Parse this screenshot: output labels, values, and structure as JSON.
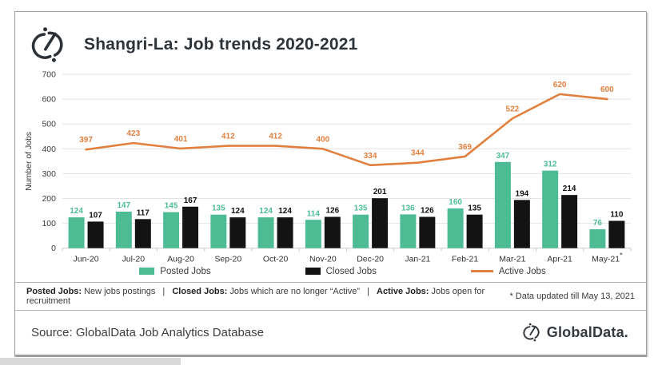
{
  "header": {
    "title": "Shangri-La: Job trends 2020-2021"
  },
  "chart_data": {
    "type": "bar",
    "subtype": "grouped-bar-with-line-overlay",
    "title": "Shangri-La: Job trends 2020-2021",
    "categories": [
      "Jun-20",
      "Jul-20",
      "Aug-20",
      "Sep-20",
      "Oct-20",
      "Nov-20",
      "Dec-20",
      "Jan-21",
      "Feb-21",
      "Mar-21",
      "Apr-21",
      "May-21"
    ],
    "last_category_suffix": "*",
    "series": [
      {
        "name": "Posted Jobs",
        "type": "bar",
        "color": "#4DBC94",
        "values": [
          124,
          147,
          145,
          135,
          124,
          114,
          135,
          136,
          160,
          347,
          312,
          76
        ]
      },
      {
        "name": "Closed Jobs",
        "type": "bar",
        "color": "#131313",
        "values": [
          107,
          117,
          167,
          124,
          124,
          126,
          201,
          126,
          135,
          194,
          214,
          110
        ]
      },
      {
        "name": "Active Jobs",
        "type": "line",
        "color": "#E1803E",
        "values": [
          397,
          423,
          401,
          412,
          412,
          400,
          334,
          344,
          369,
          522,
          620,
          600
        ]
      }
    ],
    "xlabel": "",
    "ylabel": "Number of Jobs",
    "ylim": [
      0,
      700
    ],
    "ytick_step": 100,
    "grid": true,
    "legend_position": "bottom",
    "data_labels": true
  },
  "legend": {
    "items": [
      {
        "label": "Posted Jobs",
        "swatch": "rect",
        "color": "#4DBC94"
      },
      {
        "label": "Closed Jobs",
        "swatch": "rect",
        "color": "#131313"
      },
      {
        "label": "Active Jobs",
        "swatch": "line",
        "color": "#E1803E"
      }
    ]
  },
  "footnote": {
    "definitions": [
      {
        "term": "Posted Jobs:",
        "desc": "New jobs postings"
      },
      {
        "term": "Closed Jobs:",
        "desc": "Jobs which are no longer “Active”"
      },
      {
        "term": "Active Jobs:",
        "desc": "Jobs open for recruitment"
      }
    ],
    "separator": "|",
    "note": "* Data updated till May 13, 2021"
  },
  "footer": {
    "source": "Source: GlobalData Job Analytics Database",
    "brand": "GlobalData."
  },
  "colors": {
    "posted_bar": "#4DBC94",
    "closed_bar": "#131313",
    "active_line": "#E1803E",
    "title_text": "#2e3239",
    "gridline": "#e2e2e2",
    "axis_text": "#3c3c3c"
  }
}
